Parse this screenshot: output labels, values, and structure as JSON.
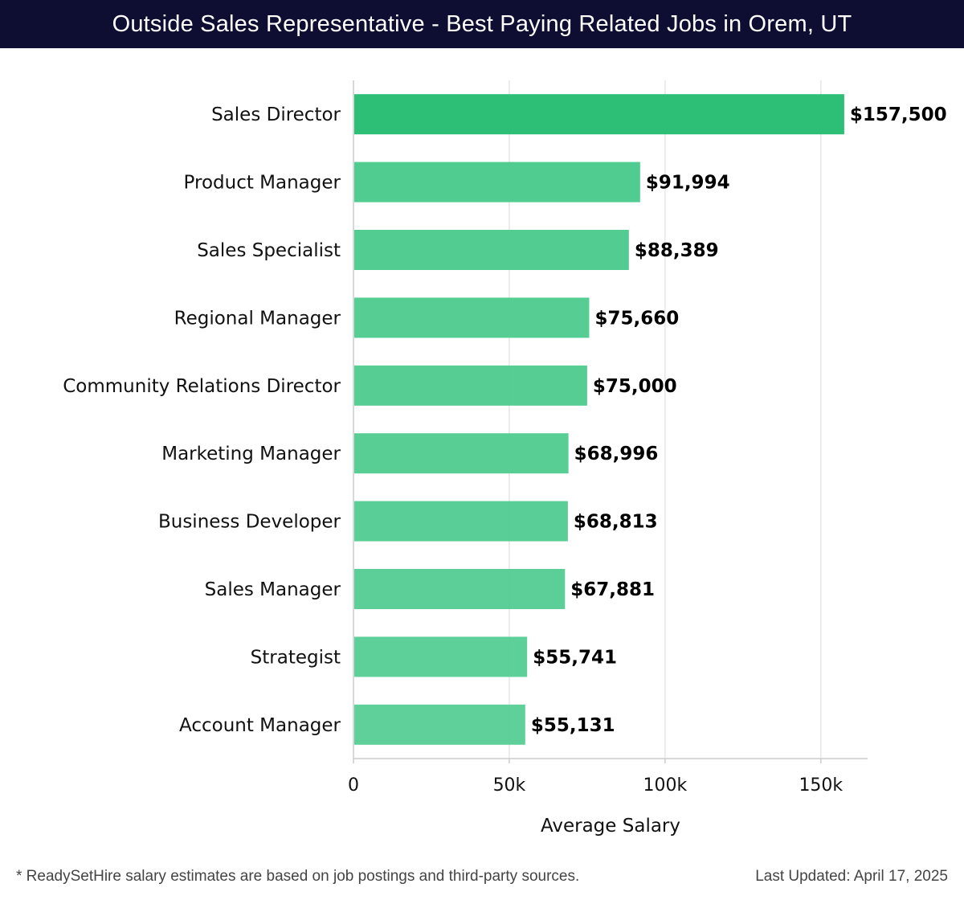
{
  "header": {
    "title": "Outside Sales Representative - Best Paying Related Jobs in Orem, UT"
  },
  "chart_data": {
    "type": "bar",
    "orientation": "horizontal",
    "title": "Outside Sales Representative - Best Paying Related Jobs in Orem, UT",
    "xlabel": "Average Salary",
    "ylabel": "",
    "xlim": [
      0,
      165000
    ],
    "xticks": [
      0,
      50000,
      100000,
      150000
    ],
    "xtick_labels": [
      "0",
      "50k",
      "100k",
      "150k"
    ],
    "grid": true,
    "categories": [
      "Sales Director",
      "Product Manager",
      "Sales Specialist",
      "Regional Manager",
      "Community Relations Director",
      "Marketing Manager",
      "Business Developer",
      "Sales Manager",
      "Strategist",
      "Account Manager"
    ],
    "values": [
      157500,
      91994,
      88389,
      75660,
      75000,
      68996,
      68813,
      67881,
      55741,
      55131
    ],
    "value_labels": [
      "$157,500",
      "$91,994",
      "$88,389",
      "$75,660",
      "$75,000",
      "$68,996",
      "$68,813",
      "$67,881",
      "$55,741",
      "$55,131"
    ],
    "colors": {
      "top_bar": "#2ebf76",
      "bar": "#4fcb8f",
      "grid": "#e6e6e6",
      "axis": "#cccccc"
    }
  },
  "footer": {
    "note": "* ReadySetHire salary estimates are based on job postings and third-party sources.",
    "updated": "Last Updated: April 17, 2025"
  }
}
